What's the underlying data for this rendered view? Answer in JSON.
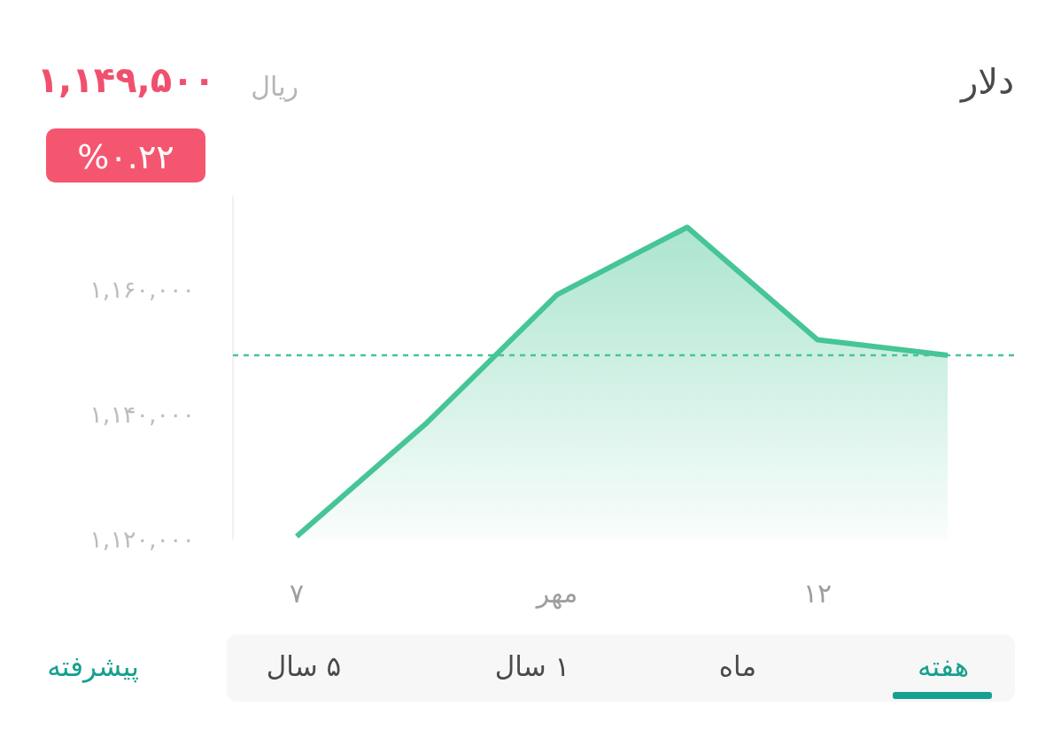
{
  "chart_data": {
    "type": "area",
    "title": "دلار",
    "categories": [
      "۷",
      null,
      "مهر",
      null,
      "۱۲",
      null
    ],
    "series": [
      {
        "color": "#46c596",
        "values": [
          1120500,
          1138700,
          1159200,
          1170000,
          1152000,
          1149500
        ]
      }
    ],
    "ylim": [
      1120000,
      1175000
    ],
    "yticks": [
      {
        "value": 1120000,
        "label": "۱,۱۲۰,۰۰۰"
      },
      {
        "value": 1140000,
        "label": "۱,۱۴۰,۰۰۰"
      },
      {
        "value": 1160000,
        "label": "۱,۱۶۰,۰۰۰"
      }
    ],
    "ref_lines": [
      {
        "axis": "y",
        "value": 1149500,
        "color": "#46c596",
        "line_style": "dashed"
      }
    ],
    "annotations": [
      "۱,۱۴۹,۵۰۰",
      "ریال",
      "%۰.۲۲",
      "هفته",
      "ماه",
      "۱ سال",
      "۵ سال",
      "پیشرفته"
    ]
  }
}
